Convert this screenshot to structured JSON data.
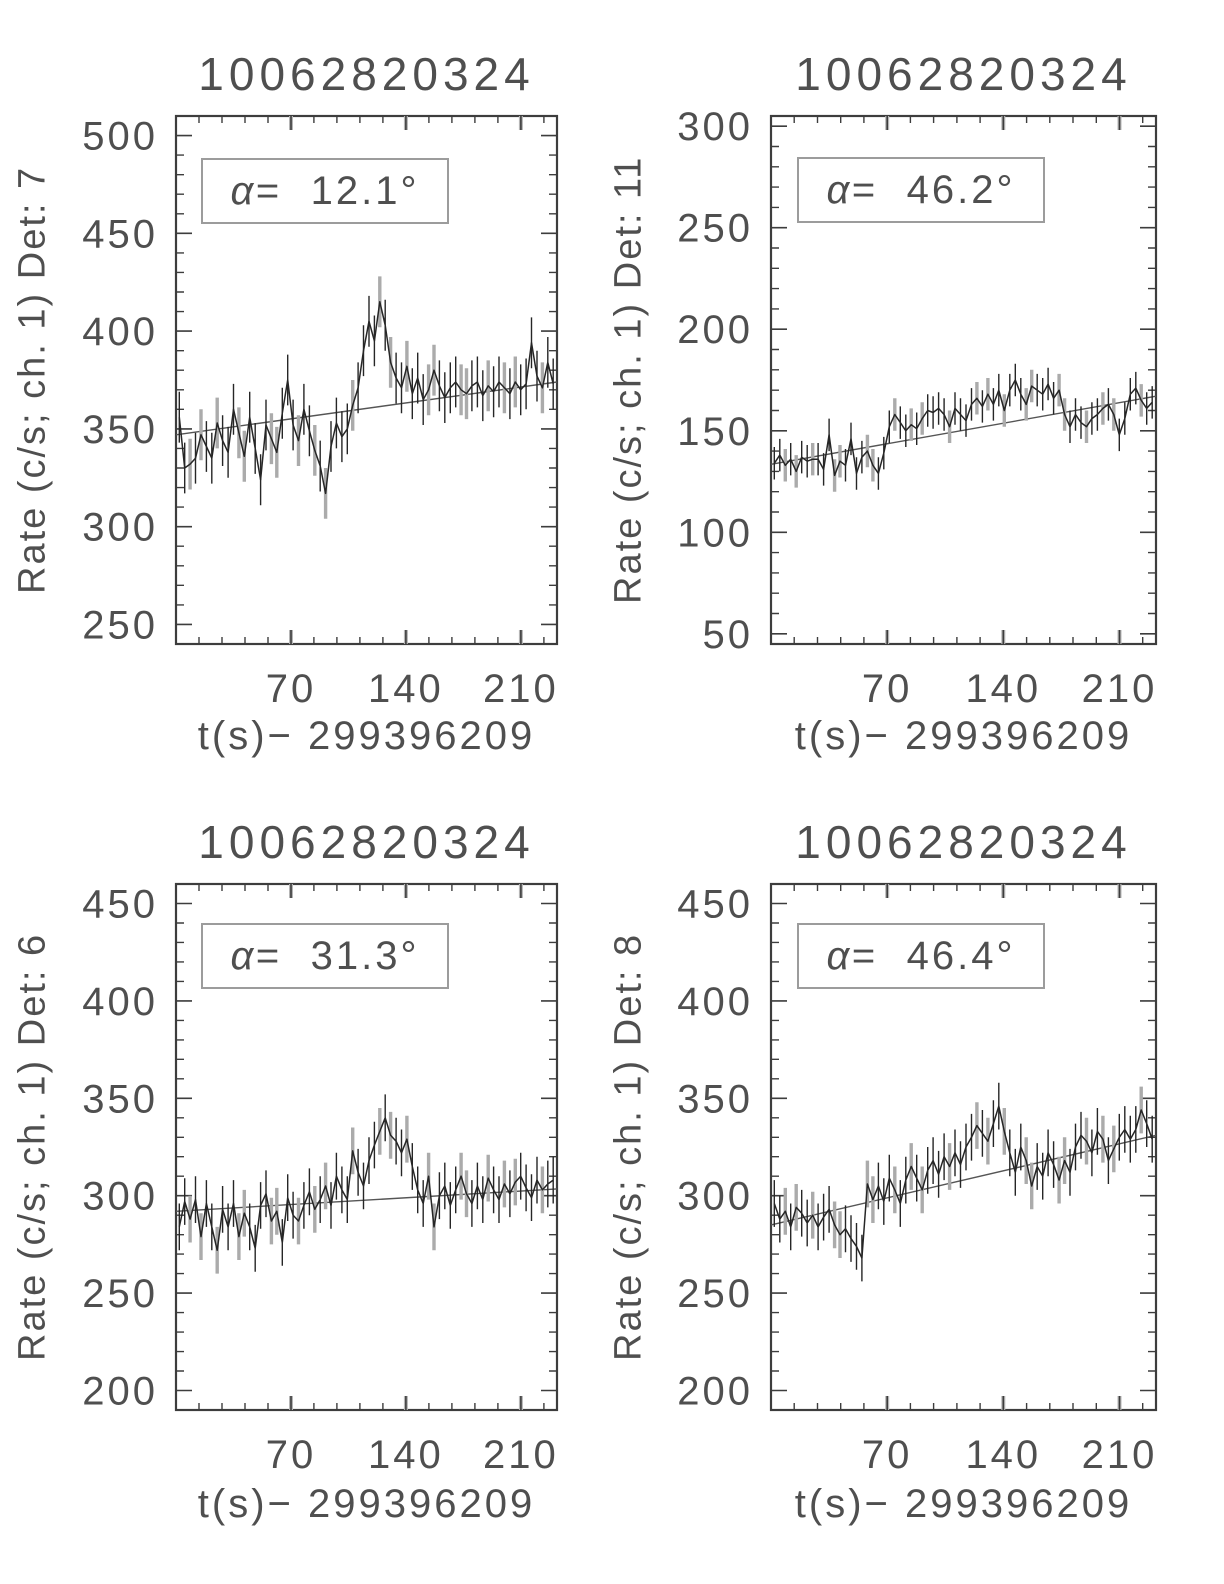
{
  "figure": {
    "background": "#ffffff",
    "colors": {
      "text": "#4f4f4f",
      "axis": "#3d3d3d",
      "line": "#262626",
      "trend": "#555555",
      "err_gray": "#ababab",
      "tick_shadow": "#b5b5b5",
      "box_border": "#9c9c9c"
    }
  },
  "chart_data": [
    {
      "type": "line",
      "position": "top-left",
      "title": "10062820324",
      "ylabel": "Rate (c/s; ch. 1) Det: 7",
      "xlabel": "t(s)− 299396209",
      "alpha": {
        "symbol": "α=",
        "value": "12.1°"
      },
      "xlim": [
        0,
        232
      ],
      "ylim": [
        240,
        510
      ],
      "xticks": [
        70,
        140,
        210
      ],
      "yticks": [
        250,
        300,
        350,
        400,
        450,
        500
      ],
      "x_minor": 14,
      "y_minor": 10,
      "x_start": 2,
      "x_step": 3.3,
      "error": 13,
      "trend": {
        "x": [
          0,
          232
        ],
        "y": [
          347,
          374
        ]
      },
      "values": [
        356,
        330,
        332,
        335,
        347,
        341,
        335,
        353,
        344,
        338,
        360,
        348,
        336,
        356,
        340,
        324,
        352,
        345,
        338,
        358,
        375,
        352,
        344,
        360,
        349,
        339,
        331,
        317,
        341,
        353,
        346,
        350,
        362,
        371,
        390,
        405,
        395,
        415,
        403,
        384,
        376,
        371,
        382,
        368,
        376,
        365,
        370,
        380,
        372,
        366,
        371,
        374,
        370,
        368,
        372,
        374,
        367,
        372,
        369,
        374,
        371,
        368,
        374,
        370,
        373,
        394,
        377,
        371,
        384,
        373
      ]
    },
    {
      "type": "line",
      "position": "top-right",
      "title": "10062820324",
      "ylabel": "Rate (c/s; ch. 1) Det: 11",
      "xlabel": "t(s)− 299396209",
      "alpha": {
        "symbol": "α=",
        "value": "46.2°"
      },
      "xlim": [
        0,
        232
      ],
      "ylim": [
        45,
        305
      ],
      "xticks": [
        70,
        140,
        210
      ],
      "yticks": [
        50,
        100,
        150,
        200,
        250,
        300
      ],
      "x_minor": 14,
      "y_minor": 10,
      "x_start": 2,
      "x_step": 3.3,
      "error": 8,
      "trend": {
        "x": [
          0,
          232
        ],
        "y": [
          133.5,
          167
        ]
      },
      "values": [
        134,
        138,
        133,
        136,
        130,
        137,
        135,
        136,
        136,
        131,
        148,
        128,
        135,
        133,
        146,
        129,
        137,
        140,
        133,
        129,
        139,
        152,
        158,
        154,
        150,
        153,
        151,
        156,
        160,
        159,
        161,
        158,
        152,
        161,
        158,
        155,
        163,
        166,
        162,
        168,
        163,
        170,
        160,
        170,
        175,
        168,
        163,
        172,
        170,
        168,
        173,
        166,
        170,
        158,
        152,
        158,
        154,
        152,
        156,
        158,
        161,
        163,
        158,
        148,
        156,
        168,
        171,
        165,
        161,
        164
      ]
    },
    {
      "type": "line",
      "position": "bottom-left",
      "title": "10062820324",
      "ylabel": "Rate (c/s; ch. 1) Det: 6",
      "xlabel": "t(s)− 299396209",
      "alpha": {
        "symbol": "α=",
        "value": "31.3°"
      },
      "xlim": [
        0,
        232
      ],
      "ylim": [
        190,
        460
      ],
      "xticks": [
        70,
        140,
        210
      ],
      "yticks": [
        200,
        250,
        300,
        350,
        400,
        450
      ],
      "x_minor": 14,
      "y_minor": 10,
      "x_start": 2,
      "x_step": 3.3,
      "error": 12,
      "trend": {
        "x": [
          0,
          232
        ],
        "y": [
          292,
          303.5
        ]
      },
      "values": [
        284,
        297,
        288,
        298,
        279,
        296,
        284,
        272,
        293,
        284,
        296,
        279,
        291,
        284,
        273,
        295,
        301,
        287,
        292,
        276,
        299,
        290,
        287,
        295,
        302,
        293,
        298,
        305,
        295,
        310,
        303,
        298,
        323,
        312,
        305,
        318,
        326,
        333,
        340,
        331,
        328,
        322,
        329,
        315,
        303,
        296,
        310,
        284,
        300,
        305,
        295,
        303,
        310,
        301,
        296,
        305,
        298,
        309,
        303,
        298,
        306,
        301,
        307,
        310,
        304,
        299,
        308,
        303,
        306,
        308
      ]
    },
    {
      "type": "line",
      "position": "bottom-right",
      "title": "10062820324",
      "ylabel": "Rate (c/s; ch. 1) Det: 8",
      "xlabel": "t(s)− 299396209",
      "alpha": {
        "symbol": "α=",
        "value": "46.4°"
      },
      "xlim": [
        0,
        232
      ],
      "ylim": [
        190,
        460
      ],
      "xticks": [
        70,
        140,
        210
      ],
      "yticks": [
        200,
        250,
        300,
        350,
        400,
        450
      ],
      "x_minor": 14,
      "y_minor": 10,
      "x_start": 2,
      "x_step": 3.3,
      "error": 12,
      "trend": {
        "x": [
          0,
          232
        ],
        "y": [
          285,
          331
        ]
      },
      "values": [
        296,
        288,
        292,
        284,
        294,
        291,
        286,
        290,
        284,
        289,
        293,
        285,
        280,
        283,
        278,
        274,
        268,
        306,
        298,
        305,
        297,
        309,
        303,
        296,
        308,
        315,
        309,
        303,
        313,
        318,
        311,
        320,
        315,
        322,
        316,
        325,
        330,
        336,
        332,
        328,
        337,
        346,
        333,
        322,
        312,
        325,
        318,
        305,
        315,
        310,
        322,
        316,
        308,
        318,
        312,
        325,
        331,
        328,
        322,
        333,
        329,
        318,
        324,
        330,
        334,
        329,
        334,
        344,
        337,
        329
      ]
    }
  ]
}
